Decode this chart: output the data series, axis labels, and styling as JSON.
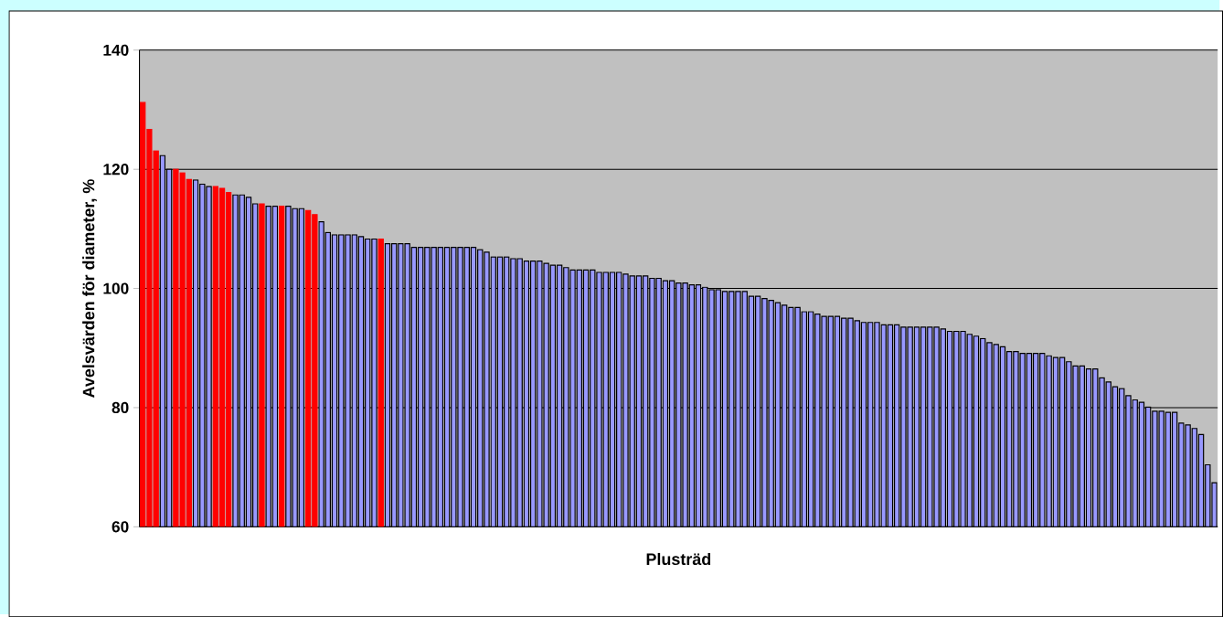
{
  "chart_data": {
    "type": "bar",
    "xlabel": "Plusträd",
    "ylabel": "Avelsvärden för diameter,  %",
    "categories": [
      null,
      null,
      null,
      null,
      null,
      null,
      null,
      null,
      null,
      null,
      null,
      null,
      null,
      null,
      null,
      null,
      null,
      null,
      null,
      null,
      null,
      null,
      null,
      null,
      null,
      null,
      null,
      null,
      null,
      null,
      null,
      null,
      null,
      null,
      null,
      null,
      null,
      null,
      null,
      null,
      null,
      null,
      null,
      null,
      null,
      null,
      null,
      null,
      null,
      null,
      null,
      null,
      null,
      null,
      null,
      null,
      null,
      null,
      null,
      null,
      null,
      null,
      null,
      null,
      null,
      null,
      null,
      null,
      null,
      null,
      null,
      null,
      null,
      null,
      null,
      null,
      null,
      null,
      null,
      null,
      null,
      null,
      null,
      null,
      null,
      null,
      null,
      null,
      null,
      null,
      null,
      null,
      null,
      null,
      null,
      null,
      null,
      null,
      null,
      null,
      null,
      null,
      null,
      null,
      null,
      null,
      null,
      null,
      null,
      null,
      null,
      null,
      null,
      null,
      null,
      null,
      null,
      null,
      null,
      null,
      null,
      null,
      null,
      null,
      null,
      null,
      null,
      null,
      null,
      null,
      null,
      null,
      null,
      null,
      null,
      null,
      null,
      null,
      null,
      null,
      null,
      null,
      null,
      null,
      null,
      null,
      null,
      null,
      null,
      null,
      null,
      null,
      null,
      null,
      null,
      null,
      null,
      null,
      null,
      null,
      null,
      null,
      null
    ],
    "values": [
      131.2,
      126.7,
      123.1,
      122.3,
      120.0,
      120.0,
      119.4,
      118.3,
      118.2,
      117.5,
      117.1,
      117.1,
      116.8,
      116.1,
      115.7,
      115.7,
      115.3,
      114.2,
      114.2,
      113.8,
      113.8,
      113.8,
      113.8,
      113.4,
      113.4,
      113.1,
      112.4,
      111.2,
      109.4,
      109.0,
      109.0,
      109.0,
      109.0,
      108.7,
      108.3,
      108.3,
      108.3,
      107.5,
      107.5,
      107.5,
      107.5,
      106.9,
      106.9,
      106.9,
      106.9,
      106.9,
      106.9,
      106.9,
      106.9,
      106.9,
      106.9,
      106.5,
      106.1,
      105.3,
      105.3,
      105.3,
      105.0,
      105.0,
      104.6,
      104.6,
      104.6,
      104.2,
      103.9,
      103.9,
      103.5,
      103.1,
      103.1,
      103.1,
      103.1,
      102.7,
      102.7,
      102.7,
      102.7,
      102.4,
      102.1,
      102.1,
      102.1,
      101.7,
      101.7,
      101.3,
      101.3,
      100.9,
      100.9,
      100.6,
      100.6,
      100.2,
      99.8,
      99.8,
      99.5,
      99.5,
      99.5,
      99.5,
      98.7,
      98.7,
      98.3,
      98.0,
      97.6,
      97.2,
      96.8,
      96.8,
      96.1,
      96.1,
      95.7,
      95.3,
      95.3,
      95.3,
      95.0,
      95.0,
      94.6,
      94.3,
      94.3,
      94.3,
      93.9,
      93.9,
      93.9,
      93.5,
      93.5,
      93.5,
      93.5,
      93.5,
      93.5,
      93.2,
      92.8,
      92.8,
      92.8,
      92.3,
      92.0,
      91.6,
      90.9,
      90.6,
      90.2,
      89.4,
      89.4,
      89.1,
      89.1,
      89.1,
      89.1,
      88.7,
      88.4,
      88.4,
      87.7,
      87.0,
      87.0,
      86.5,
      86.5,
      85.0,
      84.3,
      83.5,
      83.2,
      82.0,
      81.3,
      80.9,
      80.1,
      79.4,
      79.4,
      79.2,
      79.2,
      77.4,
      77.1,
      76.5,
      75.5,
      70.4,
      67.4
    ],
    "colors": [
      "#ff0000",
      "#ff0000",
      "#ff0000",
      "#9999ff",
      "#9999ff",
      "#ff0000",
      "#ff0000",
      "#ff0000",
      "#9999ff",
      "#9999ff",
      "#9999ff",
      "#ff0000",
      "#ff0000",
      "#ff0000",
      "#9999ff",
      "#9999ff",
      "#9999ff",
      "#9999ff",
      "#ff0000",
      "#9999ff",
      "#9999ff",
      "#ff0000",
      "#9999ff",
      "#9999ff",
      "#9999ff",
      "#ff0000",
      "#ff0000",
      "#9999ff",
      "#9999ff",
      "#9999ff",
      "#9999ff",
      "#9999ff",
      "#9999ff",
      "#9999ff",
      "#9999ff",
      "#9999ff",
      "#ff0000",
      "#9999ff",
      "#9999ff",
      "#9999ff",
      "#9999ff",
      "#9999ff",
      "#9999ff",
      "#9999ff",
      "#9999ff",
      "#9999ff",
      "#9999ff",
      "#9999ff",
      "#9999ff",
      "#9999ff",
      "#9999ff",
      "#9999ff",
      "#9999ff",
      "#9999ff",
      "#9999ff",
      "#9999ff",
      "#9999ff",
      "#9999ff",
      "#9999ff",
      "#9999ff",
      "#9999ff",
      "#9999ff",
      "#9999ff",
      "#9999ff",
      "#9999ff",
      "#9999ff",
      "#9999ff",
      "#9999ff",
      "#9999ff",
      "#9999ff",
      "#9999ff",
      "#9999ff",
      "#9999ff",
      "#9999ff",
      "#9999ff",
      "#9999ff",
      "#9999ff",
      "#9999ff",
      "#9999ff",
      "#9999ff",
      "#9999ff",
      "#9999ff",
      "#9999ff",
      "#9999ff",
      "#9999ff",
      "#9999ff",
      "#9999ff",
      "#9999ff",
      "#9999ff",
      "#9999ff",
      "#9999ff",
      "#9999ff",
      "#9999ff",
      "#9999ff",
      "#9999ff",
      "#9999ff",
      "#9999ff",
      "#9999ff",
      "#9999ff",
      "#9999ff",
      "#9999ff",
      "#9999ff",
      "#9999ff",
      "#9999ff",
      "#9999ff",
      "#9999ff",
      "#9999ff",
      "#9999ff",
      "#9999ff",
      "#9999ff",
      "#9999ff",
      "#9999ff",
      "#9999ff",
      "#9999ff",
      "#9999ff",
      "#9999ff",
      "#9999ff",
      "#9999ff",
      "#9999ff",
      "#9999ff",
      "#9999ff",
      "#9999ff",
      "#9999ff",
      "#9999ff",
      "#9999ff",
      "#9999ff",
      "#9999ff",
      "#9999ff",
      "#9999ff",
      "#9999ff",
      "#9999ff",
      "#9999ff",
      "#9999ff",
      "#9999ff",
      "#9999ff",
      "#9999ff",
      "#9999ff",
      "#9999ff",
      "#9999ff",
      "#9999ff",
      "#9999ff",
      "#9999ff",
      "#9999ff",
      "#9999ff",
      "#9999ff",
      "#9999ff",
      "#9999ff",
      "#9999ff",
      "#9999ff",
      "#9999ff",
      "#9999ff",
      "#9999ff",
      "#9999ff",
      "#9999ff",
      "#9999ff",
      "#9999ff",
      "#9999ff",
      "#9999ff",
      "#9999ff",
      "#9999ff",
      "#9999ff",
      "#9999ff",
      "#9999ff"
    ],
    "ylim": [
      60,
      140
    ],
    "yticks": [
      60,
      80,
      100,
      120,
      140
    ],
    "grid": "y"
  }
}
